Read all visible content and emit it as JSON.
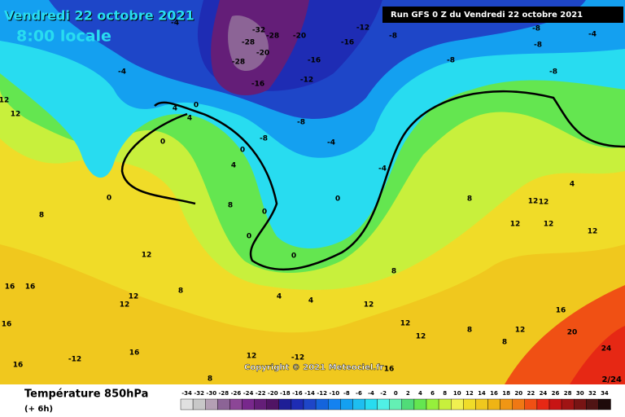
{
  "header": {
    "date": "Vendredi 22 octobre 2021",
    "time": "8:00 locale",
    "run": "Run GFS 0 Z du Vendredi 22 octobre 2021"
  },
  "map": {
    "contour_labels": [
      -4,
      -28,
      -32,
      -28,
      -20,
      -20,
      -28,
      -16,
      -16,
      -12,
      -8,
      -8,
      -8,
      -8,
      -8,
      -4,
      -12,
      -16,
      -4,
      4,
      0,
      4,
      0,
      4,
      0,
      -8,
      -8,
      -4,
      -4,
      0,
      8,
      8,
      0,
      0,
      0,
      12,
      12,
      12,
      16,
      16,
      12,
      12,
      8,
      16,
      16,
      -12,
      16,
      8,
      12,
      -12,
      16,
      12,
      12,
      8,
      12,
      16,
      20,
      24,
      12,
      12,
      12,
      12,
      12,
      8,
      8,
      4,
      4,
      12,
      8,
      0,
      4
    ],
    "copyright": "Copyright © 2021 Meteociel.fr",
    "frame": "2/24"
  },
  "footer": {
    "title": "Température 850hPa",
    "step": "(+ 6h)"
  },
  "legend": {
    "ticks": [
      -34,
      -32,
      -30,
      -28,
      -26,
      -24,
      -22,
      -20,
      -18,
      -16,
      -14,
      -12,
      -10,
      -8,
      -6,
      -4,
      -2,
      0,
      2,
      4,
      6,
      8,
      10,
      12,
      14,
      16,
      18,
      20,
      22,
      24,
      26,
      28,
      30,
      32,
      34
    ],
    "colors": [
      "#e0e0e0",
      "#c8c8c8",
      "#b4a0b4",
      "#8c6496",
      "#8c4696",
      "#78288c",
      "#641e78",
      "#501464",
      "#1e1e96",
      "#1e2cb4",
      "#1e46c8",
      "#1464dc",
      "#1482f0",
      "#14a0f0",
      "#1ebef0",
      "#28dcf0",
      "#50f0e6",
      "#64f0b4",
      "#50dc78",
      "#64e650",
      "#96f03c",
      "#c8f03c",
      "#f0f050",
      "#f0dc28",
      "#f0c81e",
      "#f0b414",
      "#f09614",
      "#f07814",
      "#f05014",
      "#e62814",
      "#c81414",
      "#a01414",
      "#781414",
      "#501414",
      "#1e0a0a"
    ]
  }
}
